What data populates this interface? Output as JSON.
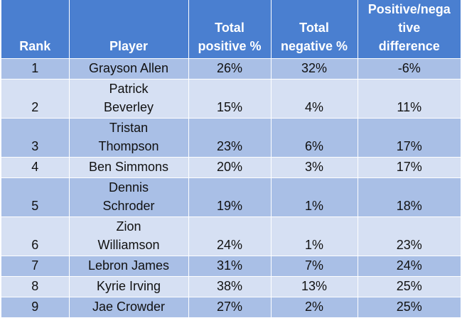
{
  "chart_data": {
    "type": "table",
    "columns": [
      "Rank",
      "Player",
      "Total positive %",
      "Total negative %",
      "Positive/negative difference"
    ],
    "header_lines": [
      [
        "Rank"
      ],
      [
        "Player"
      ],
      [
        "Total",
        "positive %"
      ],
      [
        "Total",
        "negative %"
      ],
      [
        "Positive/nega",
        "tive",
        "difference"
      ]
    ],
    "rows": [
      {
        "rank": "1",
        "player": [
          "Grayson Allen"
        ],
        "positive": "26%",
        "negative": "32%",
        "difference": "-6%"
      },
      {
        "rank": "2",
        "player": [
          "Patrick",
          "Beverley"
        ],
        "positive": "15%",
        "negative": "4%",
        "difference": "11%"
      },
      {
        "rank": "3",
        "player": [
          "Tristan",
          "Thompson"
        ],
        "positive": "23%",
        "negative": "6%",
        "difference": "17%"
      },
      {
        "rank": "4",
        "player": [
          "Ben Simmons"
        ],
        "positive": "20%",
        "negative": "3%",
        "difference": "17%"
      },
      {
        "rank": "5",
        "player": [
          "Dennis",
          "Schroder"
        ],
        "positive": "19%",
        "negative": "1%",
        "difference": "18%"
      },
      {
        "rank": "6",
        "player": [
          "Zion",
          "Williamson"
        ],
        "positive": "24%",
        "negative": "1%",
        "difference": "23%"
      },
      {
        "rank": "7",
        "player": [
          "Lebron James"
        ],
        "positive": "31%",
        "negative": "7%",
        "difference": "24%"
      },
      {
        "rank": "8",
        "player": [
          "Kyrie Irving"
        ],
        "positive": "38%",
        "negative": "13%",
        "difference": "25%"
      },
      {
        "rank": "9",
        "player": [
          "Jae Crowder"
        ],
        "positive": "27%",
        "negative": "2%",
        "difference": "25%"
      }
    ]
  },
  "colors": {
    "header": "#4a7fd0",
    "row_dark": "#a9bfe6",
    "row_light": "#d6e0f3"
  }
}
